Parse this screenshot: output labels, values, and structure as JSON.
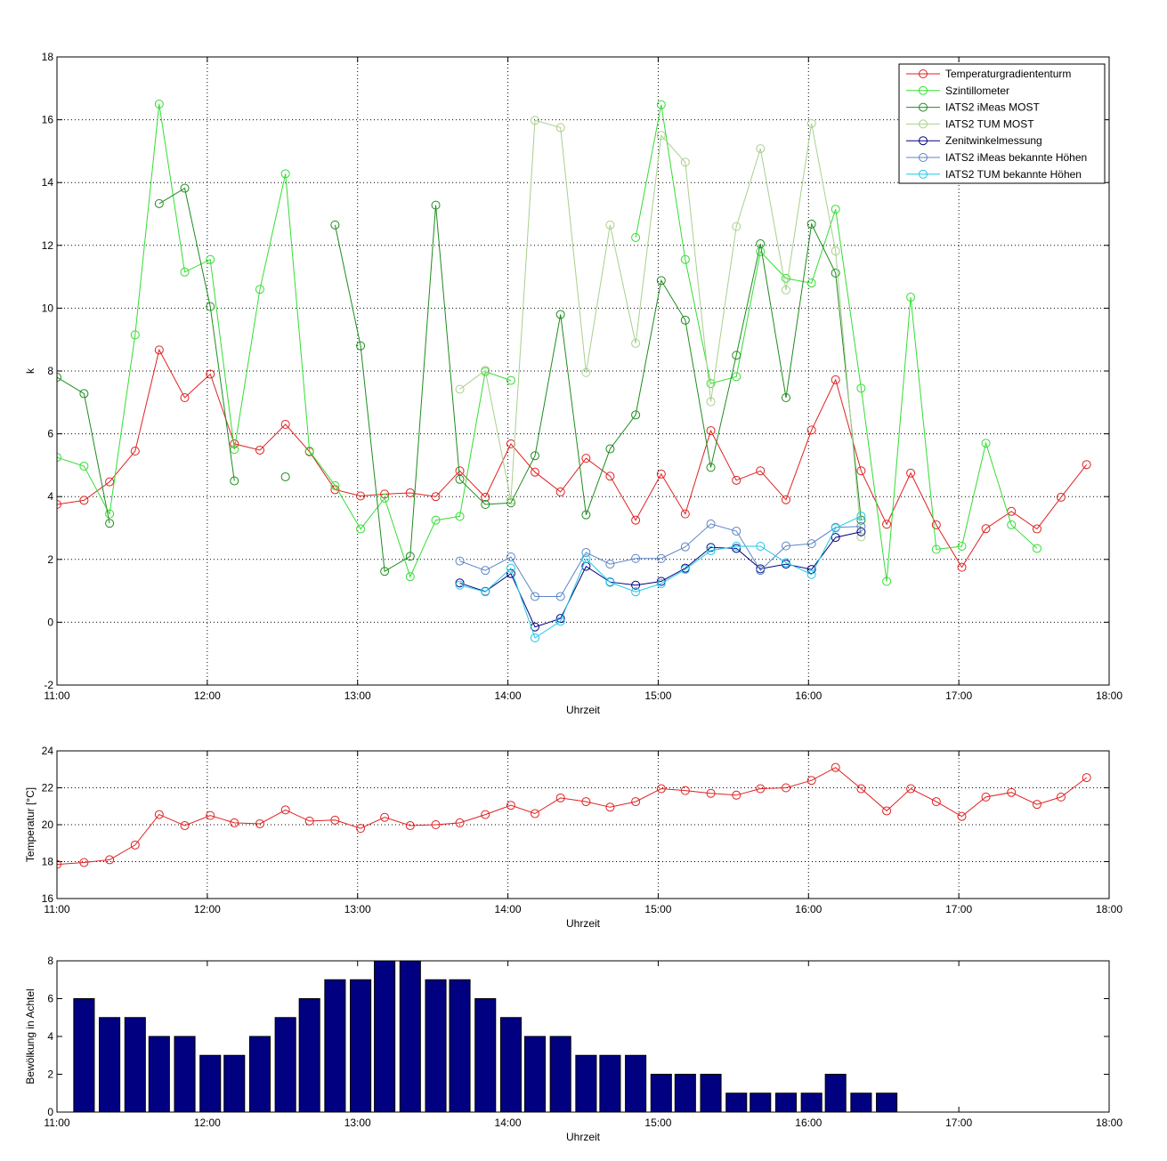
{
  "chart_data": [
    {
      "type": "line",
      "title": "",
      "xlabel": "Uhrzeit",
      "ylabel": "k",
      "xlim": [
        11.0,
        18.0
      ],
      "ylim": [
        -2,
        18
      ],
      "xticks": [
        11,
        12,
        13,
        14,
        15,
        16,
        17,
        18
      ],
      "xtick_labels": [
        "11:00",
        "12:00",
        "13:00",
        "14:00",
        "15:00",
        "16:00",
        "17:00",
        "18:00"
      ],
      "yticks": [
        -2,
        0,
        2,
        4,
        6,
        8,
        10,
        12,
        14,
        16,
        18
      ],
      "ytick_labels": [
        "-2",
        "0",
        "2",
        "4",
        "6",
        "8",
        "10",
        "12",
        "14",
        "16",
        "18"
      ],
      "grid": true,
      "legend_position": "top-right",
      "series": [
        {
          "name": "Temperaturgradiententurm",
          "color": "#e02020",
          "x": [
            11.0,
            11.18,
            11.35,
            11.52,
            11.68,
            11.85,
            12.02,
            12.18,
            12.35,
            12.52,
            12.68,
            12.85,
            13.02,
            13.18,
            13.35,
            13.52,
            13.68,
            13.85,
            14.02,
            14.18,
            14.35,
            14.52,
            14.68,
            14.85,
            15.02,
            15.18,
            15.35,
            15.52,
            15.68,
            15.85,
            16.02,
            16.18,
            16.35,
            16.52,
            16.68,
            16.85,
            17.02,
            17.18,
            17.35,
            17.52,
            17.68,
            17.85
          ],
          "y": [
            3.75,
            3.88,
            4.47,
            5.45,
            8.67,
            7.15,
            7.9,
            5.68,
            5.48,
            6.3,
            5.43,
            4.22,
            4.02,
            4.08,
            4.12,
            4.0,
            4.82,
            3.98,
            5.68,
            4.78,
            4.15,
            5.22,
            4.65,
            3.25,
            4.72,
            3.45,
            6.1,
            4.52,
            4.82,
            3.9,
            6.12,
            7.72,
            4.82,
            3.12,
            4.75,
            3.1,
            1.75,
            2.98,
            3.53,
            2.97,
            3.98,
            5.02
          ]
        },
        {
          "name": "Szintillometer",
          "color": "#33dd33",
          "x": [
            11.0,
            11.18,
            11.35,
            11.52,
            11.68,
            11.85,
            12.02,
            12.18,
            12.35,
            12.52,
            12.68,
            12.85,
            13.02,
            13.18,
            13.35,
            13.52,
            13.68,
            13.85,
            14.02,
            null,
            14.85,
            15.02,
            15.18,
            15.35,
            15.52,
            15.68,
            15.85,
            16.02,
            16.18,
            16.35,
            16.52,
            16.68,
            16.85,
            17.02,
            17.18,
            17.35,
            17.52
          ],
          "y": [
            5.25,
            4.97,
            3.45,
            9.15,
            16.5,
            11.15,
            11.55,
            5.5,
            10.6,
            14.28,
            5.45,
            4.35,
            2.97,
            3.95,
            1.45,
            3.25,
            3.37,
            7.98,
            7.7,
            null,
            12.25,
            16.48,
            11.55,
            7.6,
            7.82,
            11.8,
            10.95,
            10.8,
            13.15,
            7.45,
            1.3,
            10.35,
            2.32,
            2.42,
            5.7,
            3.1,
            2.35
          ]
        },
        {
          "name": "IATS2 iMeas MOST",
          "color": "#1e8c1e",
          "x": [
            11.0,
            11.18,
            11.35,
            null,
            11.68,
            11.85,
            12.02,
            12.18,
            null,
            12.52,
            null,
            12.85,
            13.02,
            13.18,
            13.35,
            13.52,
            13.68,
            13.85,
            14.02,
            14.18,
            14.35,
            14.52,
            14.68,
            14.85,
            15.02,
            15.18,
            15.35,
            15.52,
            15.68,
            15.85,
            16.02,
            16.18,
            16.35
          ],
          "y": [
            7.8,
            7.28,
            3.15,
            null,
            13.33,
            13.82,
            10.05,
            4.5,
            null,
            4.63,
            null,
            12.65,
            8.8,
            1.62,
            2.1,
            13.28,
            4.55,
            3.75,
            3.8,
            5.3,
            9.8,
            3.42,
            5.52,
            6.6,
            10.88,
            9.62,
            4.93,
            8.5,
            12.05,
            7.15,
            12.68,
            11.12,
            3.25
          ]
        },
        {
          "name": "IATS2 TUM MOST",
          "color": "#a8d08d",
          "x": [
            13.68,
            13.85,
            14.02,
            14.18,
            14.35,
            14.52,
            14.68,
            14.85,
            15.02,
            15.18,
            15.35,
            15.52,
            15.68,
            15.85,
            16.02,
            16.18,
            16.35
          ],
          "y": [
            7.42,
            8.02,
            3.88,
            15.98,
            15.75,
            7.95,
            12.65,
            8.88,
            15.5,
            14.65,
            7.02,
            12.6,
            15.08,
            10.58,
            15.88,
            11.82,
            2.72
          ]
        },
        {
          "name": "Zenitwinkelmessung",
          "color": "#000080",
          "x": [
            13.68,
            13.85,
            14.02,
            14.18,
            14.35,
            14.52,
            14.68,
            14.85,
            15.02,
            15.18,
            15.35,
            15.52,
            15.68,
            15.85,
            16.02,
            16.18,
            16.35
          ],
          "y": [
            1.25,
            0.98,
            1.55,
            -0.15,
            0.12,
            1.78,
            1.28,
            1.18,
            1.3,
            1.72,
            2.38,
            2.35,
            1.7,
            1.85,
            1.68,
            2.7,
            2.88
          ]
        },
        {
          "name": "IATS2 iMeas bekannte Höhen",
          "color": "#5b86c5",
          "x": [
            13.68,
            13.85,
            14.02,
            14.18,
            14.35,
            14.52,
            14.68,
            14.85,
            15.02,
            15.18,
            15.35,
            15.52,
            15.68,
            15.85,
            16.02,
            16.18,
            16.35
          ],
          "y": [
            1.95,
            1.65,
            2.08,
            0.82,
            0.82,
            2.22,
            1.85,
            2.03,
            2.03,
            2.4,
            3.13,
            2.9,
            1.65,
            2.43,
            2.5,
            3.02,
            3.05
          ]
        },
        {
          "name": "IATS2 TUM bekannte Höhen",
          "color": "#1ec8e6",
          "x": [
            13.68,
            13.85,
            14.02,
            14.18,
            14.35,
            14.52,
            14.68,
            14.85,
            15.02,
            15.18,
            15.35,
            15.52,
            15.68,
            15.85,
            16.02,
            16.18,
            16.35
          ],
          "y": [
            1.18,
            0.97,
            1.72,
            -0.5,
            0.03,
            2.02,
            1.27,
            0.97,
            1.23,
            1.68,
            2.28,
            2.42,
            2.42,
            1.9,
            1.52,
            3.0,
            3.38
          ]
        }
      ]
    },
    {
      "type": "line",
      "title": "",
      "xlabel": "Uhrzeit",
      "ylabel": "Temperatur [°C]",
      "xlim": [
        11.0,
        18.0
      ],
      "ylim": [
        16,
        24
      ],
      "xticks": [
        11,
        12,
        13,
        14,
        15,
        16,
        17,
        18
      ],
      "xtick_labels": [
        "11:00",
        "12:00",
        "13:00",
        "14:00",
        "15:00",
        "16:00",
        "17:00",
        "18:00"
      ],
      "yticks": [
        16,
        18,
        20,
        22,
        24
      ],
      "ytick_labels": [
        "16",
        "18",
        "20",
        "22",
        "24"
      ],
      "grid": true,
      "series": [
        {
          "color": "#e02020",
          "x": [
            11.0,
            11.18,
            11.35,
            11.52,
            11.68,
            11.85,
            12.02,
            12.18,
            12.35,
            12.52,
            12.68,
            12.85,
            13.02,
            13.18,
            13.35,
            13.52,
            13.68,
            13.85,
            14.02,
            14.18,
            14.35,
            14.52,
            14.68,
            14.85,
            15.02,
            15.18,
            15.35,
            15.52,
            15.68,
            15.85,
            16.02,
            16.18,
            16.35,
            16.52,
            16.68,
            16.85,
            17.02,
            17.18,
            17.35,
            17.52,
            17.68,
            17.85
          ],
          "y": [
            17.85,
            17.95,
            18.1,
            18.9,
            20.55,
            19.95,
            20.5,
            20.1,
            20.05,
            20.8,
            20.2,
            20.25,
            19.8,
            20.4,
            19.95,
            20.0,
            20.1,
            20.55,
            21.05,
            20.6,
            21.45,
            21.25,
            20.95,
            21.25,
            21.95,
            21.85,
            21.7,
            21.6,
            21.95,
            22.0,
            22.4,
            23.1,
            21.95,
            20.75,
            21.95,
            21.25,
            20.45,
            21.5,
            21.75,
            21.1,
            21.5,
            22.55
          ]
        }
      ]
    },
    {
      "type": "bar",
      "title": "",
      "xlabel": "Uhrzeit",
      "ylabel": "Bewölkung in Achtel",
      "xlim": [
        11.0,
        18.0
      ],
      "ylim": [
        0,
        8
      ],
      "xticks": [
        11,
        12,
        13,
        14,
        15,
        16,
        17,
        18
      ],
      "xtick_labels": [
        "11:00",
        "12:00",
        "13:00",
        "14:00",
        "15:00",
        "16:00",
        "17:00",
        "18:00"
      ],
      "yticks": [
        0,
        2,
        4,
        6,
        8
      ],
      "ytick_labels": [
        "0",
        "2",
        "4",
        "6",
        "8"
      ],
      "grid": false,
      "color": "#000080",
      "x": [
        11.18,
        11.35,
        11.52,
        11.68,
        11.85,
        12.02,
        12.18,
        12.35,
        12.52,
        12.68,
        12.85,
        13.02,
        13.18,
        13.35,
        13.52,
        13.68,
        13.85,
        14.02,
        14.18,
        14.35,
        14.52,
        14.68,
        14.85,
        15.02,
        15.18,
        15.35,
        15.52,
        15.68,
        15.85,
        16.02,
        16.18,
        16.35,
        16.52
      ],
      "values": [
        6,
        5,
        5,
        4,
        4,
        3,
        3,
        4,
        5,
        6,
        7,
        7,
        8,
        8,
        7,
        7,
        6,
        5,
        4,
        4,
        3,
        3,
        3,
        2,
        2,
        2,
        1,
        1,
        1,
        1,
        2,
        1,
        1
      ]
    }
  ]
}
